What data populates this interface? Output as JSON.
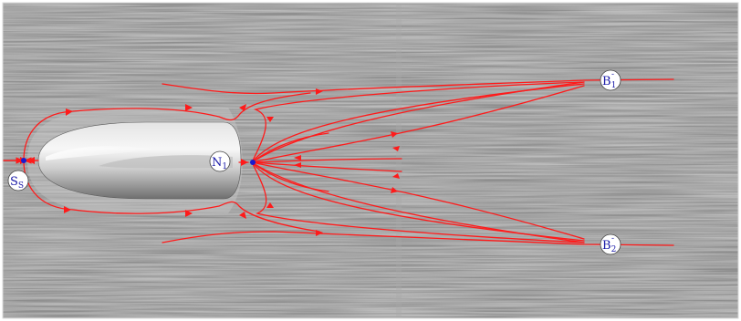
{
  "colors": {
    "streamline": "#ff1a1a",
    "critical_point": "#1a1ad0",
    "label_text": "#1a1aa8",
    "background": "#8c8c8c"
  },
  "labels": {
    "saddle_s": {
      "main": "S",
      "sub": "S"
    },
    "node_1": {
      "main": "N",
      "sub": "1"
    },
    "bifurcation_1": {
      "main": "B",
      "sub": "1",
      "sup": "-"
    },
    "bifurcation_2": {
      "main": "B",
      "sub": "2",
      "sup": "-"
    }
  }
}
